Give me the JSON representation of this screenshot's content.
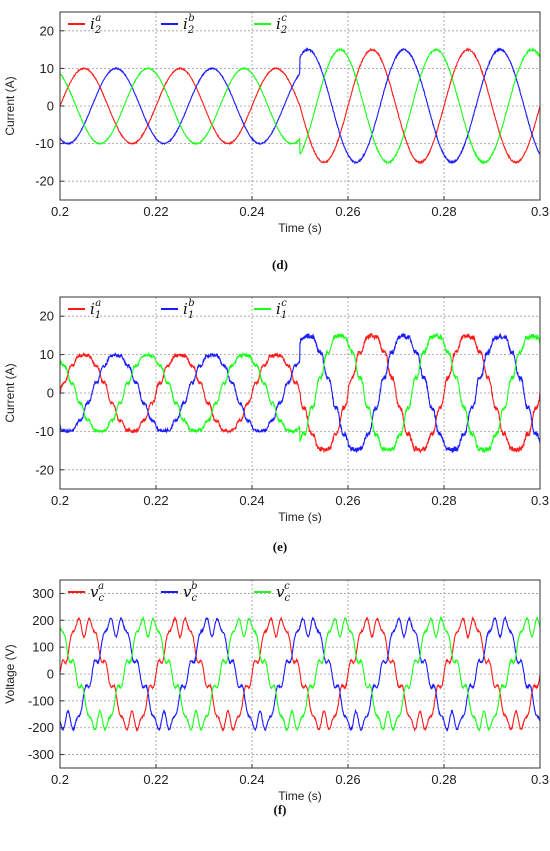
{
  "chart_data": [
    {
      "type": "line",
      "caption": "(d)",
      "xlabel": "Time (s)",
      "ylabel": "Current (A)",
      "xlim": [
        0.2,
        0.3
      ],
      "ylim": [
        -25,
        25
      ],
      "xticks": [
        0.2,
        0.22,
        0.24,
        0.26,
        0.28,
        0.3
      ],
      "xtick_labels": [
        "0.2",
        "0.22",
        "0.24",
        "0.26",
        "0.28",
        "0.3"
      ],
      "yticks": [
        -20,
        -10,
        0,
        10,
        20
      ],
      "ytick_labels": [
        "-20",
        "-10",
        "0",
        "10",
        "20"
      ],
      "grid": true,
      "legend_position": "top-left",
      "signal": {
        "frequency_hz": 50,
        "step_time_s": 0.25,
        "amplitude_before": 10,
        "amplitude_after": 15,
        "harmonic_ripple": "low"
      },
      "series": [
        {
          "name": "i",
          "sub": "2",
          "sup": "a",
          "color": "#ff1a1a",
          "phase_deg": 0
        },
        {
          "name": "i",
          "sub": "2",
          "sup": "b",
          "color": "#1a1aff",
          "phase_deg": -120
        },
        {
          "name": "i",
          "sub": "2",
          "sup": "c",
          "color": "#1aff1a",
          "phase_deg": 120
        }
      ]
    },
    {
      "type": "line",
      "caption": "(e)",
      "xlabel": "Time (s)",
      "ylabel": "Current (A)",
      "xlim": [
        0.2,
        0.3
      ],
      "ylim": [
        -25,
        25
      ],
      "xticks": [
        0.2,
        0.22,
        0.24,
        0.26,
        0.28,
        0.3
      ],
      "xtick_labels": [
        "0.2",
        "0.22",
        "0.24",
        "0.26",
        "0.28",
        "0.3"
      ],
      "yticks": [
        -20,
        -10,
        0,
        10,
        20
      ],
      "ytick_labels": [
        "-20",
        "-10",
        "0",
        "10",
        "20"
      ],
      "grid": true,
      "legend_position": "top-left",
      "signal": {
        "frequency_hz": 50,
        "step_time_s": 0.25,
        "amplitude_before": 10,
        "amplitude_after": 15,
        "harmonic_ripple": "medium"
      },
      "series": [
        {
          "name": "i",
          "sub": "1",
          "sup": "a",
          "color": "#ff1a1a",
          "phase_deg": 0
        },
        {
          "name": "i",
          "sub": "1",
          "sup": "b",
          "color": "#1a1aff",
          "phase_deg": -120
        },
        {
          "name": "i",
          "sub": "1",
          "sup": "c",
          "color": "#1aff1a",
          "phase_deg": 120
        }
      ]
    },
    {
      "type": "line",
      "caption": "(f)",
      "xlabel": "Time (s)",
      "ylabel": "Voltage (V)",
      "xlim": [
        0.2,
        0.3
      ],
      "ylim": [
        -350,
        350
      ],
      "xticks": [
        0.2,
        0.22,
        0.24,
        0.26,
        0.28,
        0.3
      ],
      "xtick_labels": [
        "0.2",
        "0.22",
        "0.24",
        "0.26",
        "0.28",
        "0.3"
      ],
      "yticks": [
        -300,
        -200,
        -100,
        0,
        100,
        200,
        300
      ],
      "ytick_labels": [
        "-300",
        "-200",
        "-100",
        "0",
        "100",
        "200",
        "300"
      ],
      "grid": true,
      "legend_position": "top-left",
      "signal": {
        "frequency_hz": 50,
        "step_time_s": 0.25,
        "amplitude_before": 190,
        "amplitude_after": 190,
        "harmonic_ripple": "high"
      },
      "series": [
        {
          "name": "v",
          "sub": "c",
          "sup": "a",
          "color": "#ff1a1a",
          "phase_deg": 0
        },
        {
          "name": "v",
          "sub": "c",
          "sup": "b",
          "color": "#1a1aff",
          "phase_deg": -120
        },
        {
          "name": "v",
          "sub": "c",
          "sup": "c",
          "color": "#1aff1a",
          "phase_deg": 120
        }
      ]
    }
  ]
}
